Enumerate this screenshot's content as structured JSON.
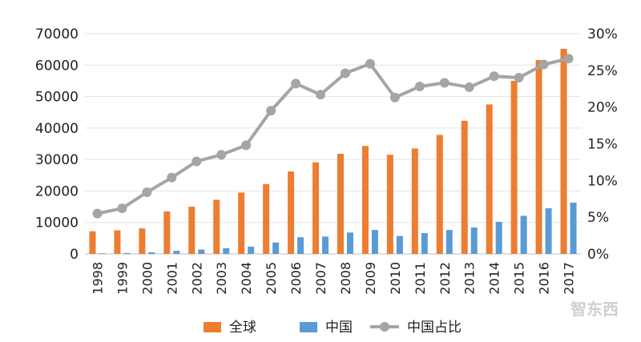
{
  "chart_data": {
    "type": "bar",
    "categories": [
      "1998",
      "1999",
      "2000",
      "2001",
      "2002",
      "2003",
      "2004",
      "2005",
      "2006",
      "2007",
      "2008",
      "2009",
      "2010",
      "2011",
      "2012",
      "2013",
      "2014",
      "2015",
      "2016",
      "2017"
    ],
    "series": [
      {
        "name": "全球",
        "kind": "bar",
        "axis": "left",
        "color": "#ed7d31",
        "values": [
          7200,
          7500,
          8100,
          13500,
          15000,
          17200,
          19500,
          22200,
          26200,
          29100,
          31800,
          34300,
          31500,
          33500,
          37800,
          42300,
          47500,
          55000,
          61600,
          65200
        ]
      },
      {
        "name": "中国",
        "kind": "bar",
        "axis": "left",
        "color": "#5b9bd5",
        "values": [
          200,
          300,
          500,
          1000,
          1400,
          1800,
          2300,
          3600,
          5300,
          5500,
          6800,
          7600,
          5700,
          6600,
          7600,
          8400,
          10200,
          12100,
          14500,
          16300
        ]
      },
      {
        "name": "中国占比",
        "kind": "line",
        "axis": "right",
        "color": "#a5a5a5",
        "values": [
          5.5,
          6.2,
          8.4,
          10.4,
          12.6,
          13.5,
          14.8,
          19.5,
          23.2,
          21.7,
          24.6,
          25.9,
          21.3,
          22.8,
          23.3,
          22.7,
          24.2,
          24.0,
          25.8,
          26.6
        ]
      }
    ],
    "yleft": {
      "min": 0,
      "max": 70000,
      "ticks": [
        "0",
        "10000",
        "20000",
        "30000",
        "40000",
        "50000",
        "60000",
        "70000"
      ]
    },
    "yright": {
      "min": 0,
      "max": 30,
      "ticks": [
        "0%",
        "5%",
        "10%",
        "15%",
        "20%",
        "25%",
        "30%"
      ]
    },
    "grid": true,
    "legend_position": "bottom"
  },
  "watermark": "智东西"
}
